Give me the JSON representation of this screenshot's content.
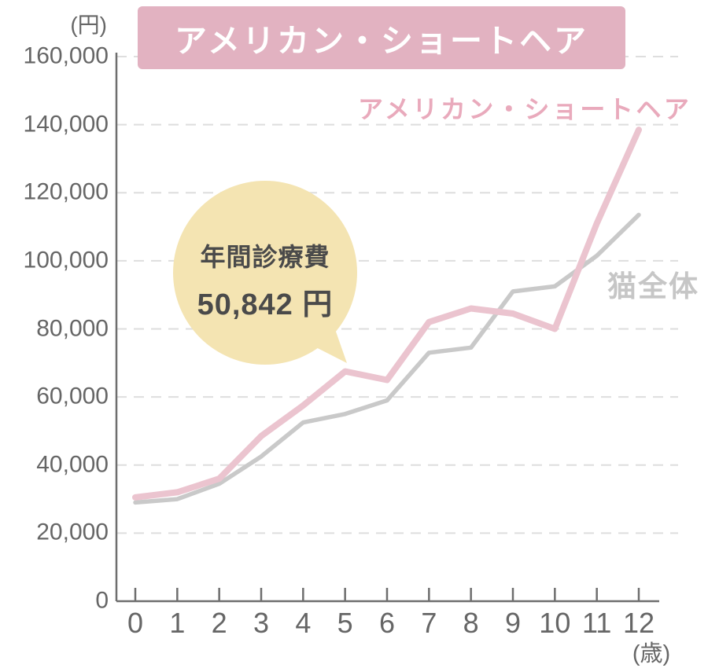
{
  "title": {
    "text": "アメリカン・ショートヘア"
  },
  "callout": {
    "line1": "年間診療費",
    "line2": "50,842 円"
  },
  "chart_data": {
    "type": "line",
    "title": "アメリカン・ショートヘア",
    "x": [
      0,
      1,
      2,
      3,
      4,
      5,
      6,
      7,
      8,
      9,
      10,
      11,
      12
    ],
    "xlabel": "(歳)",
    "ylabel": "(円)",
    "ylim": [
      0,
      160000
    ],
    "ytick_step": 20000,
    "ytick_labels": [
      "0",
      "20,000",
      "40,000",
      "60,000",
      "80,000",
      "100,000",
      "120,000",
      "140,000",
      "160,000"
    ],
    "grid": "horizontal-dashed",
    "legend_position": "inline-right-of-lines",
    "series": [
      {
        "name": "アメリカン・ショートヘア",
        "values": [
          30500,
          32000,
          36000,
          48500,
          57500,
          67500,
          65000,
          82000,
          86000,
          84500,
          80000,
          111000,
          138500
        ]
      },
      {
        "name": "猫全体",
        "values": [
          29000,
          30000,
          34500,
          42500,
          52500,
          55000,
          59000,
          73000,
          74500,
          91000,
          92500,
          101500,
          113500
        ]
      }
    ],
    "annotation": {
      "lines": [
        "年間診療費",
        "50,842 円"
      ],
      "points_at_age": 5
    }
  },
  "colors": {
    "banner_bg": "#e2b2c1",
    "banner_text": "#ffffff",
    "series_pink": "#ebc4cf",
    "series_pink_label": "#e9aabc",
    "series_gray": "#c9c9c9",
    "series_gray_label": "#c6c6c6",
    "callout_bg": "#f4e4b2",
    "callout_text": "#4a4a4a",
    "grid": "#dedede",
    "axis": "#6e6e6e",
    "tick_label": "#666666"
  }
}
